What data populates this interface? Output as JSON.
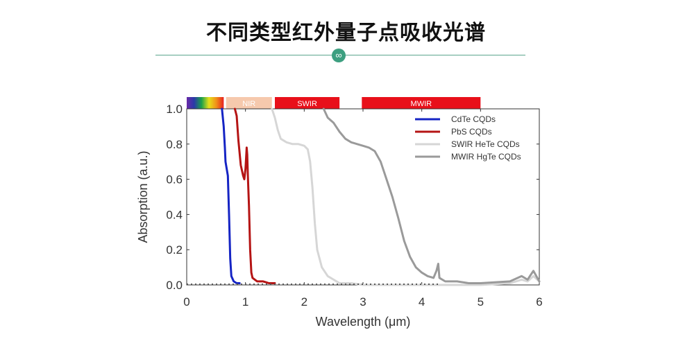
{
  "header": {
    "title": "不同类型红外量子点吸收光谱",
    "badge_icon": "infinity-icon"
  },
  "chart_data": {
    "type": "line",
    "title": "",
    "xlabel": "Wavelength (μm)",
    "ylabel": "Absorption (a.u.)",
    "xlim": [
      0,
      6
    ],
    "ylim": [
      0,
      1.0
    ],
    "xticks": [
      "0",
      "1",
      "2",
      "3",
      "4",
      "5",
      "6"
    ],
    "yticks": [
      "0.0",
      "0.2",
      "0.4",
      "0.6",
      "0.8",
      "1.0"
    ],
    "legend_position": "top-right",
    "bands": [
      {
        "name": "visible",
        "label": "",
        "range": [
          0.0,
          0.63
        ],
        "color": "spectrum"
      },
      {
        "name": "nir",
        "label": "NIR",
        "range": [
          0.67,
          1.45
        ],
        "color": "#f6c9ad"
      },
      {
        "name": "swir",
        "label": "SWIR",
        "range": [
          1.5,
          2.6
        ],
        "color": "#e8101a"
      },
      {
        "name": "mwir",
        "label": "MWIR",
        "range": [
          2.98,
          5.0
        ],
        "color": "#e8101a"
      }
    ],
    "series": [
      {
        "name": "CdTe CQDs",
        "color": "#1524c4",
        "x": [
          0.6,
          0.63,
          0.65,
          0.66,
          0.68,
          0.7,
          0.72,
          0.74,
          0.76,
          0.8,
          0.85,
          0.9
        ],
        "y": [
          1.0,
          0.9,
          0.78,
          0.7,
          0.66,
          0.62,
          0.4,
          0.15,
          0.05,
          0.02,
          0.01,
          0.01
        ]
      },
      {
        "name": "PbS CQDs",
        "color": "#b51414",
        "x": [
          0.82,
          0.85,
          0.88,
          0.92,
          0.96,
          0.98,
          1.0,
          1.02,
          1.03,
          1.04,
          1.06,
          1.08,
          1.1,
          1.12,
          1.16,
          1.2,
          1.3,
          1.4,
          1.5
        ],
        "y": [
          1.0,
          0.96,
          0.82,
          0.68,
          0.62,
          0.6,
          0.66,
          0.78,
          0.74,
          0.62,
          0.45,
          0.2,
          0.07,
          0.04,
          0.03,
          0.02,
          0.02,
          0.01,
          0.01
        ]
      },
      {
        "name": "SWIR HeTe CQDs",
        "color": "#d6d6d6",
        "x": [
          1.45,
          1.5,
          1.55,
          1.6,
          1.7,
          1.8,
          1.9,
          2.0,
          2.06,
          2.1,
          2.14,
          2.18,
          2.22,
          2.3,
          2.4,
          2.5,
          2.6,
          2.8,
          3.0,
          4.0,
          5.0,
          5.5,
          5.7,
          5.8,
          5.9,
          6.0
        ],
        "y": [
          1.0,
          0.95,
          0.88,
          0.83,
          0.81,
          0.8,
          0.8,
          0.79,
          0.77,
          0.7,
          0.55,
          0.35,
          0.2,
          0.1,
          0.05,
          0.03,
          0.01,
          0.01,
          0.0,
          0.0,
          0.0,
          0.01,
          0.03,
          0.02,
          0.05,
          0.02
        ]
      },
      {
        "name": "MWIR HgTe CQDs",
        "color": "#9a9a9a",
        "x": [
          2.33,
          2.4,
          2.5,
          2.6,
          2.7,
          2.8,
          2.9,
          3.0,
          3.1,
          3.2,
          3.3,
          3.4,
          3.5,
          3.6,
          3.7,
          3.8,
          3.9,
          4.0,
          4.1,
          4.2,
          4.25,
          4.28,
          4.3,
          4.4,
          4.6,
          4.8,
          5.0,
          5.5,
          5.7,
          5.8,
          5.9,
          6.0
        ],
        "y": [
          1.0,
          0.95,
          0.92,
          0.87,
          0.83,
          0.81,
          0.8,
          0.79,
          0.78,
          0.76,
          0.7,
          0.6,
          0.5,
          0.38,
          0.25,
          0.16,
          0.1,
          0.07,
          0.05,
          0.04,
          0.08,
          0.12,
          0.04,
          0.02,
          0.02,
          0.01,
          0.01,
          0.02,
          0.05,
          0.03,
          0.08,
          0.02
        ]
      }
    ]
  }
}
